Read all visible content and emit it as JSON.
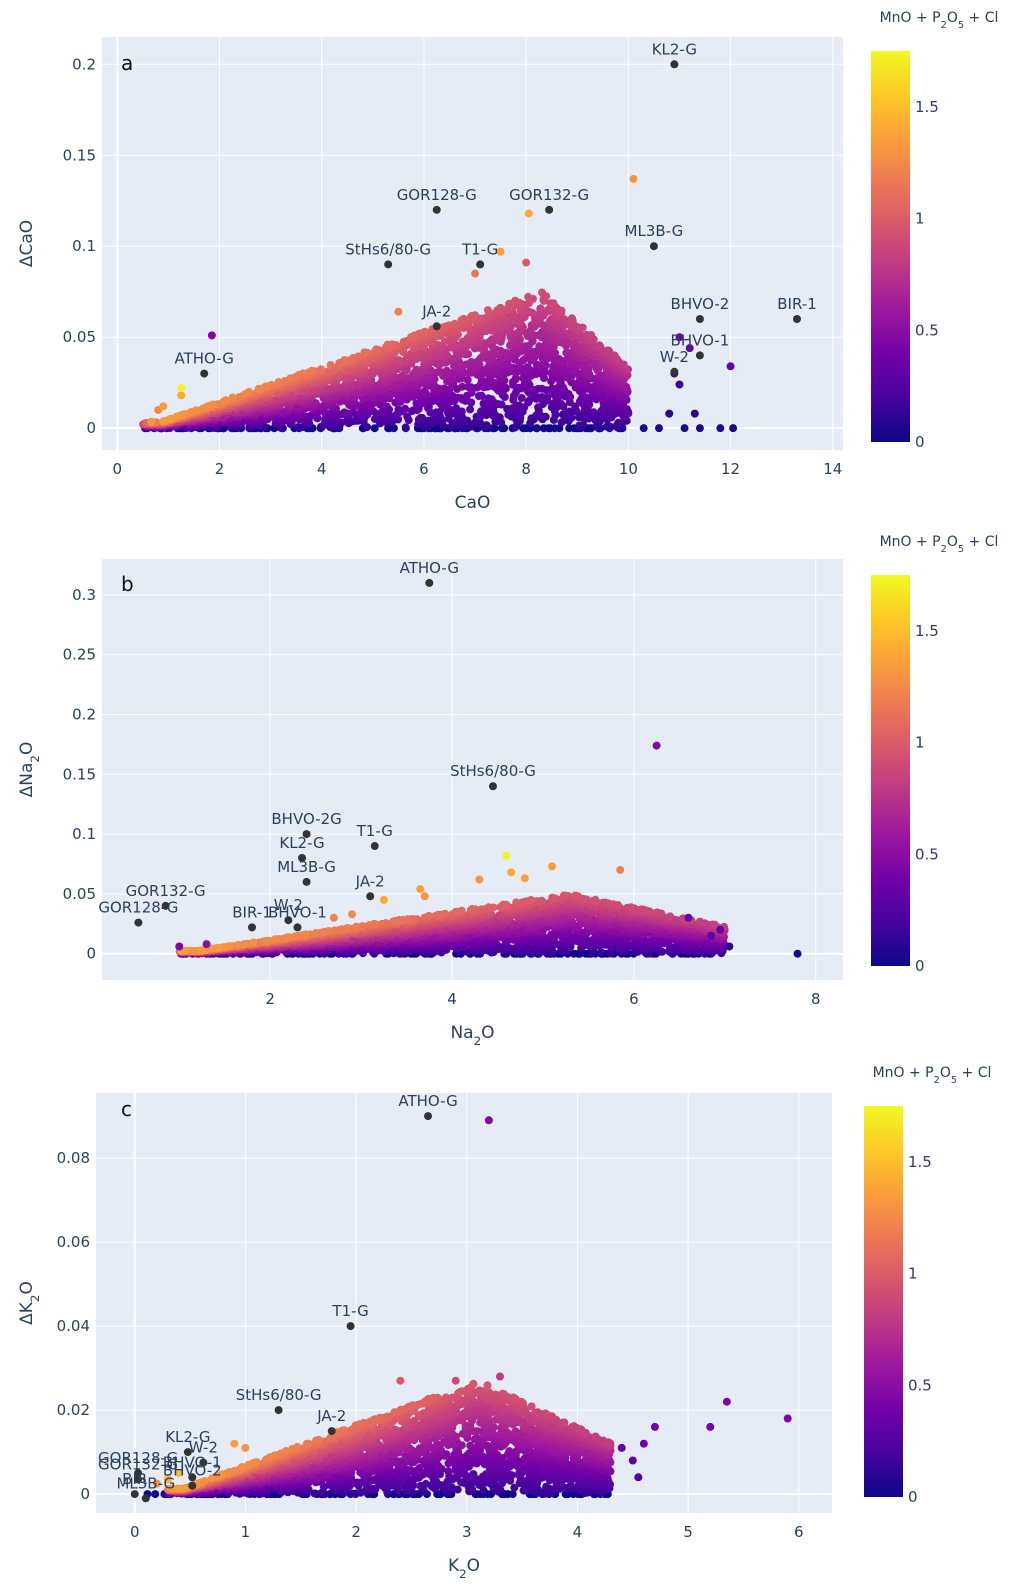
{
  "colorscale": {
    "name": "Plasma",
    "stops": [
      "#0d0887",
      "#46039f",
      "#7201a8",
      "#9c179e",
      "#bd3786",
      "#d8576b",
      "#ed7953",
      "#fb9f3a",
      "#fdca26",
      "#f0f921"
    ],
    "cmin": 0,
    "cmax": 1.75
  },
  "chart_data": [
    {
      "type": "scatter",
      "panel_label": "a",
      "xlabel": "CaO",
      "ylabel": "ΔCaO",
      "xlim": [
        -0.3,
        14.2
      ],
      "ylim": [
        -0.012,
        0.215
      ],
      "x_ticks": [
        0,
        2,
        4,
        6,
        8,
        10,
        12,
        14
      ],
      "y_ticks": [
        0,
        0.05,
        0.1,
        0.15,
        0.2
      ],
      "y_tick_labels": [
        "0",
        "0.05",
        "0.1",
        "0.15",
        "0.2"
      ],
      "grid": true,
      "colorbar": {
        "title": "MnO + P2O5 + Cl",
        "ticks": [
          0,
          0.5,
          1,
          1.5
        ],
        "tick_labels": [
          "0",
          "0.5",
          "1",
          "1.5"
        ]
      },
      "cloud": {
        "x_range": [
          0.5,
          10.0
        ],
        "y_max_at_peak": 0.075,
        "peak_x": 8.3,
        "zero_x_range": [
          0.5,
          10.0
        ]
      },
      "extra_points": [
        {
          "x": 0.8,
          "y": 0.01,
          "c": 1.25
        },
        {
          "x": 0.9,
          "y": 0.012,
          "c": 1.35
        },
        {
          "x": 1.25,
          "y": 0.018,
          "c": 1.4
        },
        {
          "x": 1.25,
          "y": 0.022,
          "c": 1.72
        },
        {
          "x": 1.85,
          "y": 0.051,
          "c": 0.45
        },
        {
          "x": 5.5,
          "y": 0.064,
          "c": 1.2
        },
        {
          "x": 7.0,
          "y": 0.085,
          "c": 1.15
        },
        {
          "x": 7.5,
          "y": 0.097,
          "c": 1.35
        },
        {
          "x": 8.0,
          "y": 0.091,
          "c": 1.0
        },
        {
          "x": 8.05,
          "y": 0.118,
          "c": 1.4
        },
        {
          "x": 10.1,
          "y": 0.137,
          "c": 1.3
        },
        {
          "x": 11.0,
          "y": 0.05,
          "c": 0.4
        },
        {
          "x": 11.2,
          "y": 0.044,
          "c": 0.35
        },
        {
          "x": 12.0,
          "y": 0.034,
          "c": 0.35
        },
        {
          "x": 10.9,
          "y": 0.03,
          "c": 0.2
        },
        {
          "x": 11.0,
          "y": 0.024,
          "c": 0.15
        },
        {
          "x": 11.3,
          "y": 0.008,
          "c": 0.1
        },
        {
          "x": 10.8,
          "y": 0.008,
          "c": 0.1
        },
        {
          "x": 10.6,
          "y": 0.0,
          "c": 0.05
        },
        {
          "x": 11.1,
          "y": 0.0,
          "c": 0.05
        },
        {
          "x": 11.4,
          "y": 0.0,
          "c": 0.05
        },
        {
          "x": 11.8,
          "y": 0.0,
          "c": 0.05
        },
        {
          "x": 12.05,
          "y": 0.0,
          "c": 0.05
        },
        {
          "x": 10.3,
          "y": 0.0,
          "c": 0.05
        }
      ],
      "references": [
        {
          "label": "KL2-G",
          "x": 10.9,
          "y": 0.2
        },
        {
          "label": "GOR128-G",
          "x": 6.25,
          "y": 0.12
        },
        {
          "label": "GOR132-G",
          "x": 8.45,
          "y": 0.12
        },
        {
          "label": "ML3B-G",
          "x": 10.5,
          "y": 0.1
        },
        {
          "label": "StHs6/80-G",
          "x": 5.3,
          "y": 0.09
        },
        {
          "label": "T1-G",
          "x": 7.1,
          "y": 0.09
        },
        {
          "label": "JA-2",
          "x": 6.25,
          "y": 0.056
        },
        {
          "label": "BHVO-2",
          "x": 11.4,
          "y": 0.06
        },
        {
          "label": "BIR-1",
          "x": 13.3,
          "y": 0.06
        },
        {
          "label": "BHVO-1",
          "x": 11.4,
          "y": 0.04
        },
        {
          "label": "W-2",
          "x": 10.9,
          "y": 0.031
        },
        {
          "label": "ATHO-G",
          "x": 1.7,
          "y": 0.03
        }
      ]
    },
    {
      "type": "scatter",
      "panel_label": "b",
      "xlabel": "Na2O",
      "ylabel": "ΔNa2O",
      "xlim": [
        0.15,
        8.3
      ],
      "ylim": [
        -0.022,
        0.33
      ],
      "x_ticks": [
        2,
        4,
        6,
        8
      ],
      "y_ticks": [
        0,
        0.05,
        0.1,
        0.15,
        0.2,
        0.25,
        0.3
      ],
      "y_tick_labels": [
        "0",
        "0.05",
        "0.1",
        "0.15",
        "0.2",
        "0.25",
        "0.3"
      ],
      "grid": true,
      "colorbar": {
        "title": "MnO + P2O5 + Cl",
        "ticks": [
          0,
          0.5,
          1,
          1.5
        ],
        "tick_labels": [
          "0",
          "0.5",
          "1",
          "1.5"
        ]
      },
      "cloud": {
        "x_range": [
          1.0,
          7.0
        ],
        "y_max_at_peak": 0.05,
        "peak_x": 5.3,
        "zero_x_range": [
          0.9,
          7.05
        ]
      },
      "extra_points": [
        {
          "x": 4.6,
          "y": 0.082,
          "c": 1.72
        },
        {
          "x": 4.65,
          "y": 0.068,
          "c": 1.4
        },
        {
          "x": 4.8,
          "y": 0.063,
          "c": 1.35
        },
        {
          "x": 5.1,
          "y": 0.073,
          "c": 1.35
        },
        {
          "x": 4.3,
          "y": 0.062,
          "c": 1.3
        },
        {
          "x": 3.65,
          "y": 0.054,
          "c": 1.35
        },
        {
          "x": 3.7,
          "y": 0.048,
          "c": 1.3
        },
        {
          "x": 3.25,
          "y": 0.045,
          "c": 1.4
        },
        {
          "x": 5.85,
          "y": 0.07,
          "c": 1.2
        },
        {
          "x": 6.25,
          "y": 0.174,
          "c": 0.45
        },
        {
          "x": 7.05,
          "y": 0.006,
          "c": 0.1
        },
        {
          "x": 7.8,
          "y": 0.0,
          "c": 0.05
        },
        {
          "x": 6.85,
          "y": 0.015,
          "c": 0.3
        },
        {
          "x": 6.95,
          "y": 0.02,
          "c": 0.35
        },
        {
          "x": 6.6,
          "y": 0.03,
          "c": 0.35
        },
        {
          "x": 1.3,
          "y": 0.008,
          "c": 0.5
        },
        {
          "x": 1.0,
          "y": 0.006,
          "c": 0.45
        },
        {
          "x": 2.7,
          "y": 0.03,
          "c": 1.2
        },
        {
          "x": 2.9,
          "y": 0.033,
          "c": 1.25
        }
      ],
      "references": [
        {
          "label": "ATHO-G",
          "x": 3.75,
          "y": 0.31
        },
        {
          "label": "StHs6/80-G",
          "x": 4.45,
          "y": 0.14
        },
        {
          "label": "BHVO-2G",
          "x": 2.4,
          "y": 0.1
        },
        {
          "label": "T1-G",
          "x": 3.15,
          "y": 0.09
        },
        {
          "label": "KL2-G",
          "x": 2.35,
          "y": 0.08
        },
        {
          "label": "ML3B-G",
          "x": 2.4,
          "y": 0.06
        },
        {
          "label": "JA-2",
          "x": 3.1,
          "y": 0.048
        },
        {
          "label": "GOR132-G",
          "x": 0.85,
          "y": 0.04
        },
        {
          "label": "W-2",
          "x": 2.2,
          "y": 0.028
        },
        {
          "label": "BHVO-1",
          "x": 2.3,
          "y": 0.022
        },
        {
          "label": "BIR-1",
          "x": 1.8,
          "y": 0.022
        },
        {
          "label": "GOR128-G",
          "x": 0.55,
          "y": 0.026
        }
      ]
    },
    {
      "type": "scatter",
      "panel_label": "c",
      "xlabel": "K2O",
      "ylabel": "ΔK2O",
      "xlim": [
        -0.35,
        6.3
      ],
      "ylim": [
        -0.0045,
        0.0955
      ],
      "x_ticks": [
        0,
        1,
        2,
        3,
        4,
        5,
        6
      ],
      "y_ticks": [
        0,
        0.02,
        0.04,
        0.06,
        0.08
      ],
      "y_tick_labels": [
        "0",
        "0.02",
        "0.04",
        "0.06",
        "0.08"
      ],
      "grid": true,
      "colorbar": {
        "title": "MnO + P2O5 + Cl",
        "ticks": [
          0,
          0.5,
          1,
          1.5
        ],
        "tick_labels": [
          "0",
          "0.5",
          "1",
          "1.5"
        ]
      },
      "cloud": {
        "x_range": [
          0.3,
          4.3
        ],
        "y_max_at_peak": 0.027,
        "peak_x": 3.1,
        "zero_x_range": [
          0.1,
          4.3
        ]
      },
      "extra_points": [
        {
          "x": 3.2,
          "y": 0.089,
          "c": 0.45
        },
        {
          "x": 5.35,
          "y": 0.022,
          "c": 0.45
        },
        {
          "x": 5.9,
          "y": 0.018,
          "c": 0.45
        },
        {
          "x": 5.2,
          "y": 0.016,
          "c": 0.4
        },
        {
          "x": 4.7,
          "y": 0.016,
          "c": 0.4
        },
        {
          "x": 4.6,
          "y": 0.012,
          "c": 0.35
        },
        {
          "x": 4.5,
          "y": 0.008,
          "c": 0.3
        },
        {
          "x": 4.55,
          "y": 0.004,
          "c": 0.25
        },
        {
          "x": 4.4,
          "y": 0.011,
          "c": 0.3
        },
        {
          "x": 0.2,
          "y": 0.0025,
          "c": 1.3
        },
        {
          "x": 0.3,
          "y": 0.0035,
          "c": 1.45
        },
        {
          "x": 0.4,
          "y": 0.005,
          "c": 1.5
        },
        {
          "x": 0.9,
          "y": 0.012,
          "c": 1.35
        },
        {
          "x": 1.0,
          "y": 0.011,
          "c": 1.3
        },
        {
          "x": 2.4,
          "y": 0.027,
          "c": 1.0
        },
        {
          "x": 2.9,
          "y": 0.027,
          "c": 0.9
        },
        {
          "x": 3.3,
          "y": 0.028,
          "c": 0.8
        }
      ],
      "references": [
        {
          "label": "ATHO-G",
          "x": 2.65,
          "y": 0.09
        },
        {
          "label": "T1-G",
          "x": 1.95,
          "y": 0.04
        },
        {
          "label": "StHs6/80-G",
          "x": 1.3,
          "y": 0.02
        },
        {
          "label": "JA-2",
          "x": 1.78,
          "y": 0.015
        },
        {
          "label": "KL2-G",
          "x": 0.48,
          "y": 0.01
        },
        {
          "label": "GOR128-G",
          "x": 0.03,
          "y": 0.005
        },
        {
          "label": "W-2",
          "x": 0.62,
          "y": 0.0075
        },
        {
          "label": "GOR132-G",
          "x": 0.03,
          "y": 0.0035
        },
        {
          "label": "BHVO-1",
          "x": 0.52,
          "y": 0.004
        },
        {
          "label": "BHVO-2",
          "x": 0.52,
          "y": 0.002
        },
        {
          "label": "BIR",
          "x": 0.0,
          "y": 0.0
        },
        {
          "label": "ML3B-G",
          "x": 0.1,
          "y": -0.001
        }
      ]
    }
  ]
}
